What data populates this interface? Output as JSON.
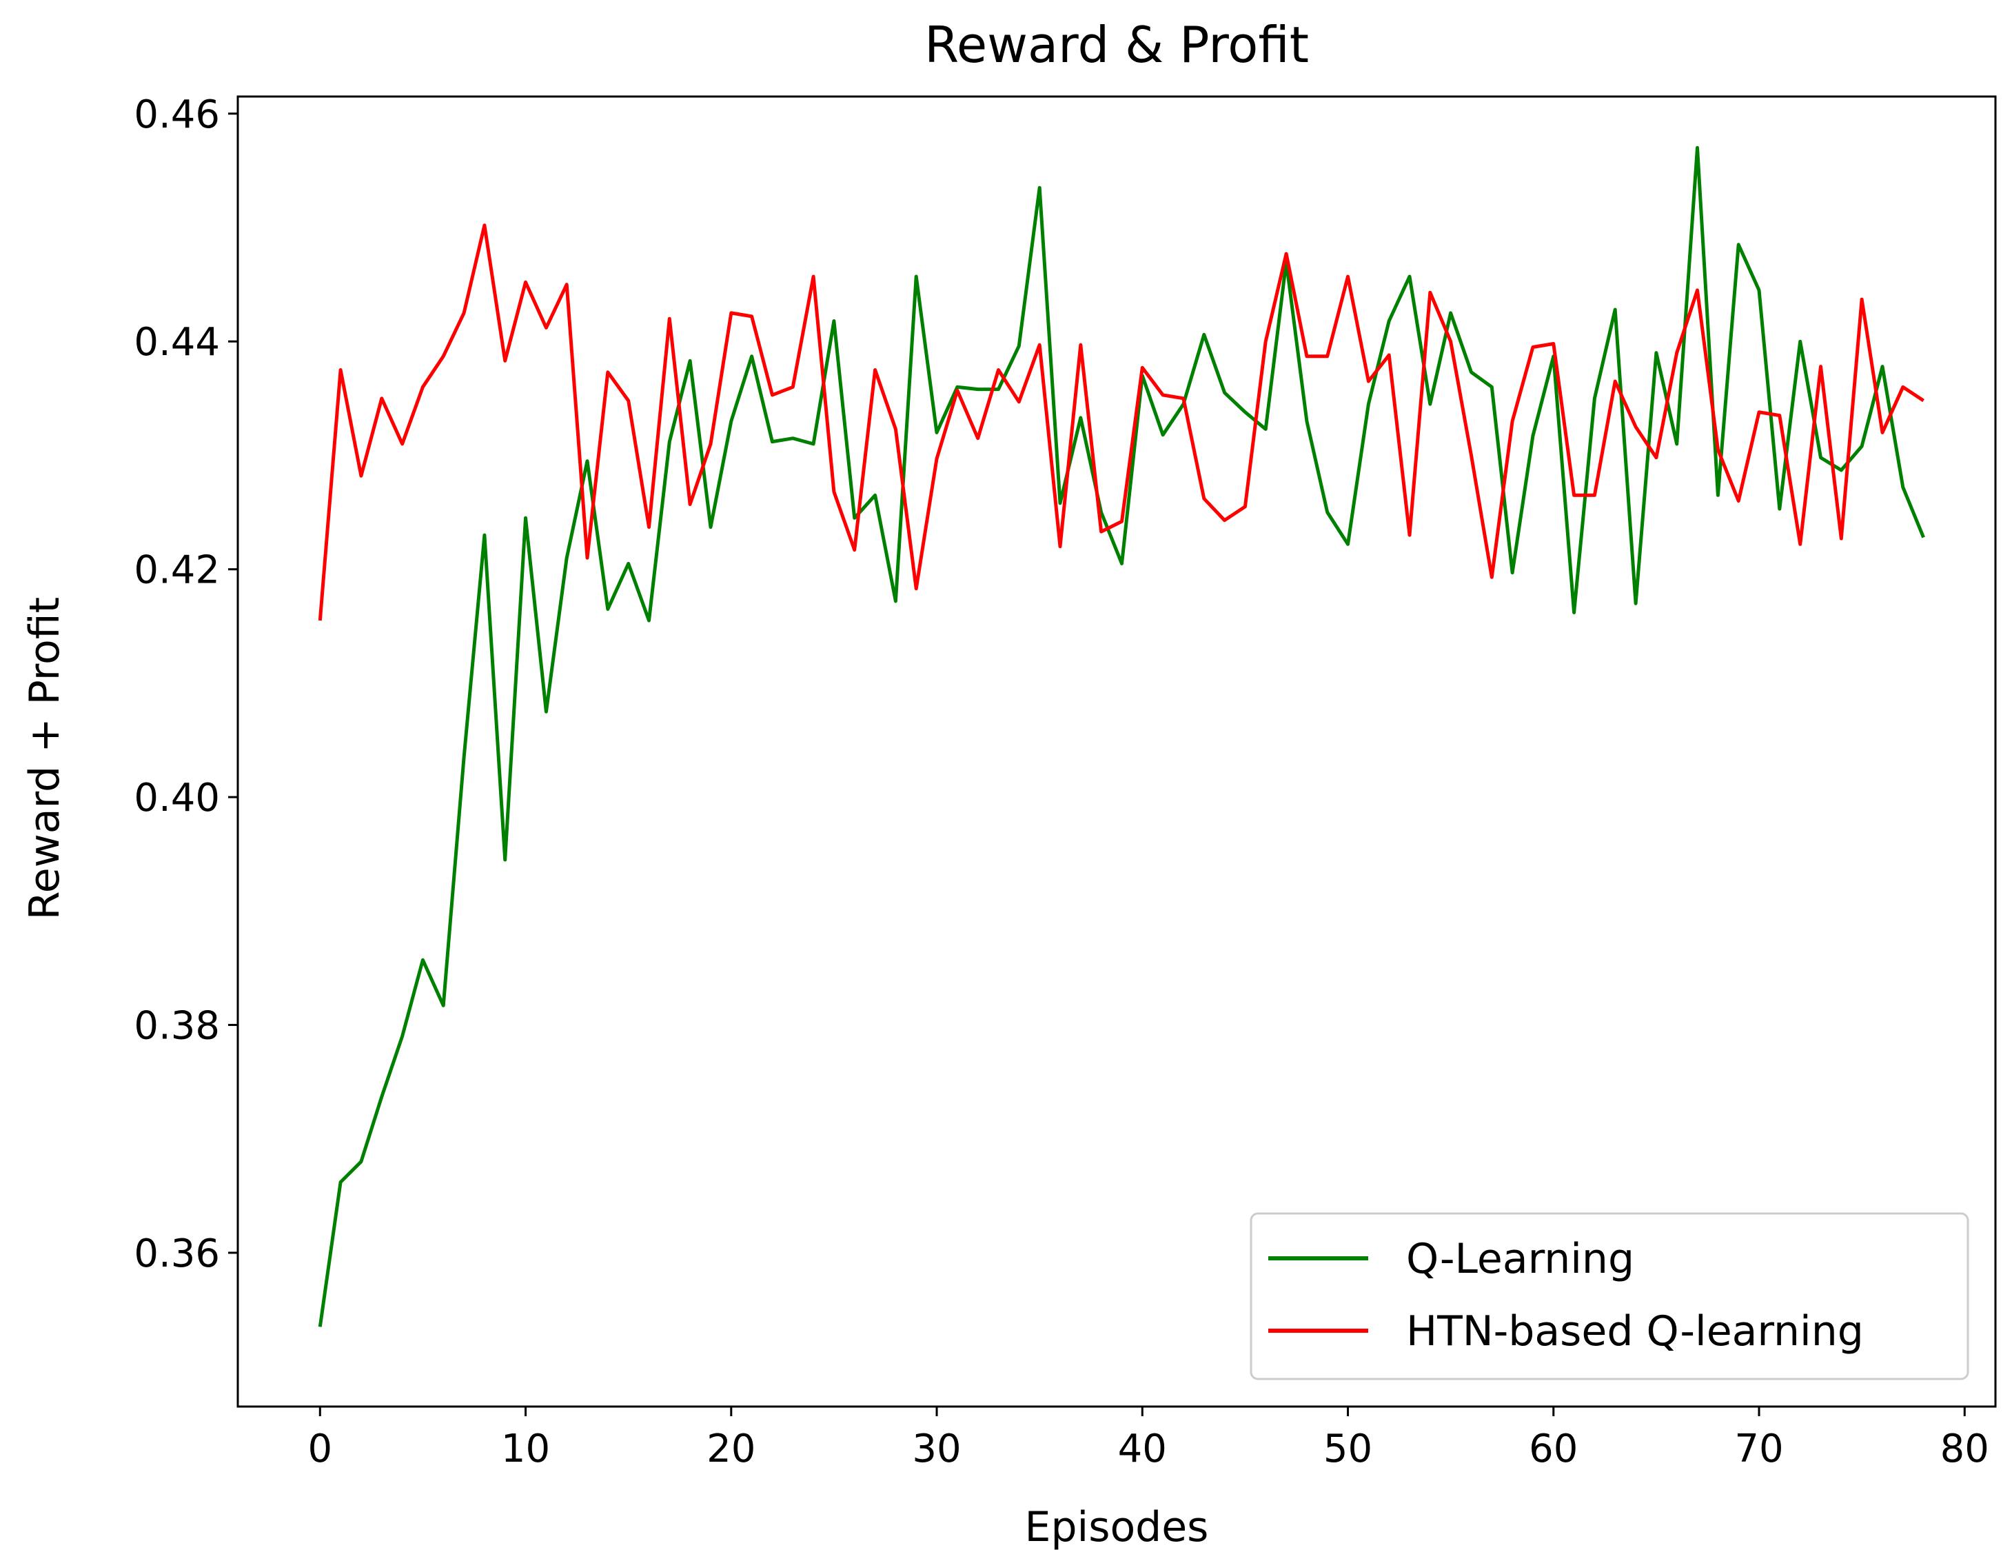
{
  "chart_data": {
    "type": "line",
    "title": "Reward & Profit",
    "xlabel": "Episodes",
    "ylabel": "Reward  + Profit",
    "xlim": [
      -4,
      81.5
    ],
    "ylim": [
      0.3465,
      0.4615
    ],
    "xticks": [
      0,
      10,
      20,
      30,
      40,
      50,
      60,
      70,
      80
    ],
    "yticks": [
      0.36,
      0.38,
      0.4,
      0.42,
      0.44,
      0.46
    ],
    "xtick_labels": [
      "0",
      "10",
      "20",
      "30",
      "40",
      "50",
      "60",
      "70",
      "80"
    ],
    "ytick_labels": [
      "0.36",
      "0.38",
      "0.40",
      "0.42",
      "0.44",
      "0.46"
    ],
    "grid": false,
    "legend_position": "lower-right",
    "x": [
      0,
      1,
      2,
      3,
      4,
      5,
      6,
      7,
      8,
      9,
      10,
      11,
      12,
      13,
      14,
      15,
      16,
      17,
      18,
      19,
      20,
      21,
      22,
      23,
      24,
      25,
      26,
      27,
      28,
      29,
      30,
      31,
      32,
      33,
      34,
      35,
      36,
      37,
      38,
      39,
      40,
      41,
      42,
      43,
      44,
      45,
      46,
      47,
      48,
      49,
      50,
      51,
      52,
      53,
      54,
      55,
      56,
      57,
      58,
      59,
      60,
      61,
      62,
      63,
      64,
      65,
      66,
      67,
      68,
      69,
      70,
      71,
      72,
      73,
      74,
      75,
      76,
      77,
      78
    ],
    "series": [
      {
        "name": "Q-Learning",
        "color": "#008000",
        "values": [
          0.3535,
          0.3662,
          0.368,
          0.3737,
          0.379,
          0.3857,
          0.3817,
          0.4035,
          0.423,
          0.3945,
          0.4245,
          0.4075,
          0.421,
          0.4295,
          0.4165,
          0.4205,
          0.4155,
          0.4312,
          0.4383,
          0.4237,
          0.433,
          0.4387,
          0.4312,
          0.4315,
          0.431,
          0.4418,
          0.4245,
          0.4265,
          0.4172,
          0.4457,
          0.432,
          0.436,
          0.4358,
          0.4358,
          0.4396,
          0.4535,
          0.4258,
          0.4333,
          0.425,
          0.4205,
          0.437,
          0.4318,
          0.4345,
          0.4406,
          0.4355,
          0.4338,
          0.4323,
          0.447,
          0.433,
          0.425,
          0.4222,
          0.4345,
          0.4418,
          0.4457,
          0.4345,
          0.4425,
          0.4373,
          0.436,
          0.4197,
          0.4317,
          0.4387,
          0.4162,
          0.435,
          0.4428,
          0.417,
          0.439,
          0.431,
          0.457,
          0.4265,
          0.4485,
          0.4445,
          0.4253,
          0.44,
          0.4298,
          0.4287,
          0.4308,
          0.4378,
          0.4272,
          0.4228
        ]
      },
      {
        "name": "HTN-based Q-learning",
        "color": "#ff0000",
        "values": [
          0.4155,
          0.4375,
          0.4282,
          0.435,
          0.431,
          0.436,
          0.4387,
          0.4425,
          0.4502,
          0.4383,
          0.4452,
          0.4412,
          0.445,
          0.421,
          0.4373,
          0.4348,
          0.4237,
          0.442,
          0.4257,
          0.431,
          0.4425,
          0.4422,
          0.4353,
          0.436,
          0.4457,
          0.4268,
          0.4217,
          0.4375,
          0.4323,
          0.4183,
          0.4297,
          0.4357,
          0.4315,
          0.4375,
          0.4347,
          0.4397,
          0.422,
          0.4397,
          0.4233,
          0.4242,
          0.4377,
          0.4353,
          0.435,
          0.4262,
          0.4243,
          0.4255,
          0.44,
          0.4477,
          0.4387,
          0.4387,
          0.4457,
          0.4365,
          0.4388,
          0.423,
          0.4443,
          0.44,
          0.43,
          0.4193,
          0.433,
          0.4395,
          0.4398,
          0.4265,
          0.4265,
          0.4365,
          0.4325,
          0.4298,
          0.439,
          0.4445,
          0.4305,
          0.426,
          0.4338,
          0.4335,
          0.4222,
          0.4378,
          0.4227,
          0.4437,
          0.432,
          0.436,
          0.4348
        ]
      }
    ]
  }
}
